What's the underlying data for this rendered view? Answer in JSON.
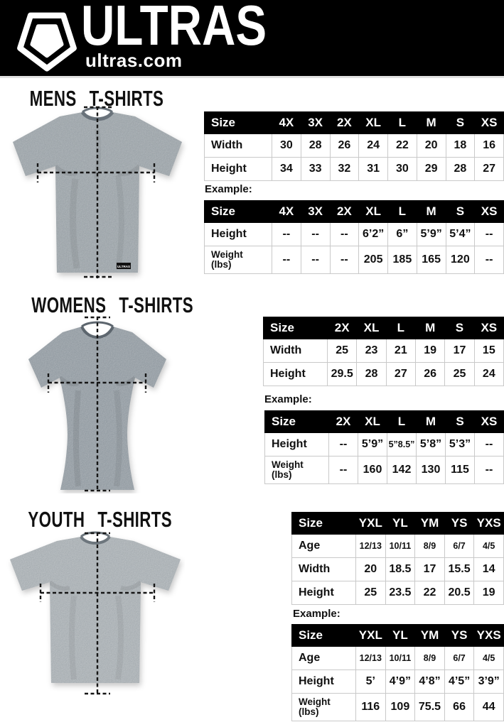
{
  "header": {
    "brand": "ULTRAS",
    "site": "ultras.com",
    "logo_icon": "pentagon-shield-logo"
  },
  "colors": {
    "header_bg": "#000000",
    "table_header_bg": "#000000",
    "table_border": "#c9c9c9",
    "mens_shirt": "#8C969C",
    "womens_shirt": "#7E8890",
    "youth_shirt": "#939BA0",
    "measure_line": "#151515"
  },
  "sections": [
    {
      "id": "mens",
      "title": "MENS T-SHIRTS",
      "example_label": "Example:",
      "size_table": {
        "columns": [
          "Size",
          "4X",
          "3X",
          "2X",
          "XL",
          "L",
          "M",
          "S",
          "XS"
        ],
        "rows": [
          {
            "label": [
              "Width"
            ],
            "values": [
              "30",
              "28",
              "26",
              "24",
              "22",
              "20",
              "18",
              "16"
            ]
          },
          {
            "label": [
              "Height"
            ],
            "values": [
              "34",
              "33",
              "32",
              "31",
              "30",
              "29",
              "28",
              "27"
            ]
          }
        ]
      },
      "example_table": {
        "columns": [
          "Size",
          "4X",
          "3X",
          "2X",
          "XL",
          "L",
          "M",
          "S",
          "XS"
        ],
        "rows": [
          {
            "label": [
              "Height"
            ],
            "values": [
              "--",
              "--",
              "--",
              "6’2”",
              "6”",
              "5’9”",
              "5’4”",
              "--"
            ]
          },
          {
            "label": [
              "Weight",
              "(lbs)"
            ],
            "values": [
              "--",
              "--",
              "--",
              "205",
              "185",
              "165",
              "120",
              "--"
            ]
          }
        ]
      }
    },
    {
      "id": "womens",
      "title": "WOMENS T-SHIRTS",
      "example_label": "Example:",
      "size_table": {
        "columns": [
          "Size",
          "2X",
          "XL",
          "L",
          "M",
          "S",
          "XS"
        ],
        "rows": [
          {
            "label": [
              "Width"
            ],
            "values": [
              "25",
              "23",
              "21",
              "19",
              "17",
              "15"
            ]
          },
          {
            "label": [
              "Height"
            ],
            "values": [
              "29.5",
              "28",
              "27",
              "26",
              "25",
              "24"
            ]
          }
        ]
      },
      "example_table": {
        "columns": [
          "Size",
          "2X",
          "XL",
          "L",
          "M",
          "S",
          "XS"
        ],
        "rows": [
          {
            "label": [
              "Height"
            ],
            "values": [
              "--",
              "5’9”",
              "5”8.5”",
              "5’8”",
              "5’3”",
              "--"
            ]
          },
          {
            "label": [
              "Weight",
              "(lbs)"
            ],
            "values": [
              "--",
              "160",
              "142",
              "130",
              "115",
              "--"
            ]
          }
        ]
      }
    },
    {
      "id": "youth",
      "title": "YOUTH T-SHIRTS",
      "example_label": "Example:",
      "size_table": {
        "columns": [
          "Size",
          "YXL",
          "YL",
          "YM",
          "YS",
          "YXS"
        ],
        "rows": [
          {
            "label": [
              "Age"
            ],
            "values": [
              "12/13",
              "10/11",
              "8/9",
              "6/7",
              "4/5"
            ]
          },
          {
            "label": [
              "Width"
            ],
            "values": [
              "20",
              "18.5",
              "17",
              "15.5",
              "14"
            ]
          },
          {
            "label": [
              "Height"
            ],
            "values": [
              "25",
              "23.5",
              "22",
              "20.5",
              "19"
            ]
          }
        ]
      },
      "example_table": {
        "columns": [
          "Size",
          "YXL",
          "YL",
          "YM",
          "YS",
          "YXS"
        ],
        "rows": [
          {
            "label": [
              "Age"
            ],
            "values": [
              "12/13",
              "10/11",
              "8/9",
              "6/7",
              "4/5"
            ]
          },
          {
            "label": [
              "Height"
            ],
            "values": [
              "5’",
              "4’9”",
              "4’8”",
              "4’5”",
              "3’9”"
            ]
          },
          {
            "label": [
              "Weight",
              "(lbs)"
            ],
            "values": [
              "116",
              "109",
              "75.5",
              "66",
              "44"
            ]
          }
        ]
      }
    }
  ]
}
